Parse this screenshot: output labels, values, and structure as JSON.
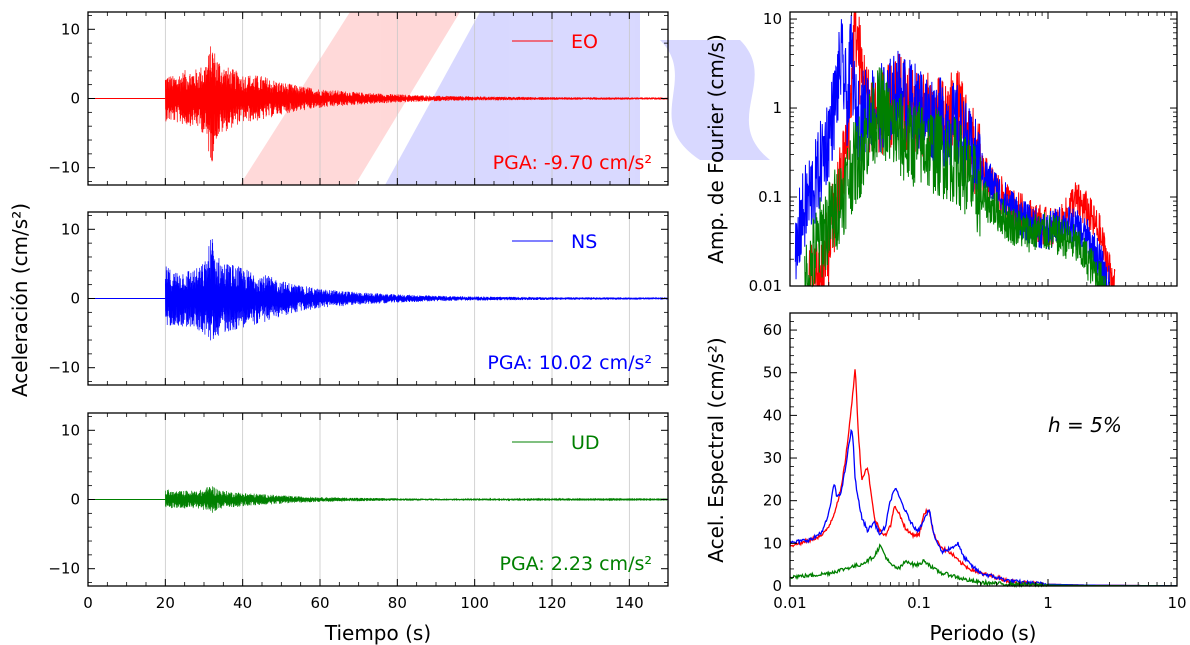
{
  "figure": {
    "left_ylabel": "Aceleración (cm/s²)",
    "left_xlabel": "Tiempo (s)",
    "right_xlabel": "Periodo (s)",
    "fourier_ylabel": "Amp. de Fourier (cm/s)",
    "spectral_ylabel": "Acel. Espectral (cm/s²)",
    "damping_annotation": "h = 5%",
    "colors": {
      "EO": "#ff0000",
      "NS": "#0000ff",
      "UD": "#008000",
      "grid": "#c8c8c8"
    }
  },
  "chart_data": [
    {
      "type": "line",
      "panel": "time-history-EO",
      "legend": "EO",
      "pga_label": "PGA: -9.70 cm/s²",
      "xlim": [
        0,
        150
      ],
      "ylim": [
        -12.5,
        12.5
      ],
      "x_ticks": [
        0,
        20,
        40,
        60,
        80,
        100,
        120,
        140
      ],
      "y_ticks": [
        -10,
        0,
        10
      ],
      "grid_x": true,
      "record_start": 20,
      "envelope": {
        "t": [
          20,
          22,
          25,
          28,
          30,
          31,
          32,
          33,
          35,
          38,
          40,
          45,
          50,
          55,
          60,
          70,
          80,
          90,
          100,
          120,
          150
        ],
        "max": [
          3.6,
          3.3,
          4.1,
          4.3,
          5.0,
          6.2,
          8.3,
          6.6,
          4.9,
          4.1,
          3.6,
          3.3,
          2.4,
          1.8,
          1.4,
          0.9,
          0.6,
          0.4,
          0.3,
          0.2,
          0.15
        ],
        "min": [
          -3.3,
          -3.4,
          -3.9,
          -4.1,
          -5.2,
          -7.6,
          -9.7,
          -6.1,
          -5.0,
          -4.0,
          -3.5,
          -3.2,
          -2.3,
          -1.8,
          -1.4,
          -0.9,
          -0.6,
          -0.4,
          -0.3,
          -0.2,
          -0.15
        ]
      }
    },
    {
      "type": "line",
      "panel": "time-history-NS",
      "legend": "NS",
      "pga_label": "PGA: 10.02 cm/s²",
      "xlim": [
        0,
        150
      ],
      "ylim": [
        -12.5,
        12.5
      ],
      "x_ticks": [
        0,
        20,
        40,
        60,
        80,
        100,
        120,
        140
      ],
      "y_ticks": [
        -10,
        0,
        10
      ],
      "grid_x": true,
      "record_start": 20,
      "envelope": {
        "t": [
          20,
          22,
          25,
          28,
          30,
          31,
          32,
          33,
          35,
          38,
          40,
          45,
          50,
          55,
          60,
          70,
          80,
          90,
          100,
          120,
          150
        ],
        "max": [
          4.8,
          4.0,
          4.2,
          4.4,
          5.2,
          7.0,
          10.0,
          6.5,
          5.4,
          4.9,
          4.4,
          3.6,
          2.6,
          1.9,
          1.4,
          0.9,
          0.6,
          0.4,
          0.3,
          0.2,
          0.15
        ],
        "min": [
          -4.2,
          -3.8,
          -4.2,
          -4.4,
          -5.2,
          -6.0,
          -6.4,
          -5.6,
          -5.0,
          -4.6,
          -4.2,
          -3.6,
          -2.6,
          -1.9,
          -1.4,
          -0.9,
          -0.6,
          -0.4,
          -0.3,
          -0.2,
          -0.15
        ]
      }
    },
    {
      "type": "line",
      "panel": "time-history-UD",
      "legend": "UD",
      "pga_label": "PGA: 2.23 cm/s²",
      "xlim": [
        0,
        150
      ],
      "ylim": [
        -12.5,
        12.5
      ],
      "x_ticks": [
        0,
        20,
        40,
        60,
        80,
        100,
        120,
        140
      ],
      "y_ticks": [
        -10,
        0,
        10
      ],
      "grid_x": true,
      "record_start": 20,
      "envelope": {
        "t": [
          20,
          22,
          25,
          28,
          30,
          31,
          32,
          33,
          35,
          38,
          40,
          45,
          50,
          55,
          60,
          70,
          80,
          90,
          100,
          120,
          150
        ],
        "max": [
          1.6,
          1.2,
          1.3,
          1.3,
          1.5,
          1.9,
          2.2,
          1.7,
          1.3,
          1.1,
          1.0,
          0.8,
          0.6,
          0.45,
          0.35,
          0.25,
          0.18,
          0.12,
          0.1,
          0.08,
          0.06
        ],
        "min": [
          -1.7,
          -1.2,
          -1.3,
          -1.3,
          -1.5,
          -1.8,
          -2.0,
          -1.6,
          -1.3,
          -1.1,
          -1.0,
          -0.8,
          -0.6,
          -0.45,
          -0.35,
          -0.25,
          -0.18,
          -0.12,
          -0.1,
          -0.08,
          -0.06
        ]
      }
    },
    {
      "type": "line",
      "panel": "fourier-spectrum",
      "xscale": "log",
      "yscale": "log",
      "xlim": [
        0.01,
        10
      ],
      "ylim": [
        0.01,
        12
      ],
      "y_tick_labels": [
        "0.01",
        "0.1",
        "1",
        "10"
      ],
      "series": [
        {
          "name": "EO",
          "x": [
            0.014,
            0.016,
            0.018,
            0.02,
            0.022,
            0.025,
            0.028,
            0.03,
            0.032,
            0.035,
            0.04,
            0.05,
            0.06,
            0.07,
            0.08,
            0.1,
            0.12,
            0.15,
            0.2,
            0.25,
            0.3,
            0.4,
            0.5,
            0.7,
            1.0,
            1.3,
            1.6,
            2.0,
            2.5,
            3.0,
            3.3
          ],
          "y": [
            0.01,
            0.011,
            0.015,
            0.03,
            0.06,
            0.15,
            0.5,
            2.0,
            10.0,
            3.0,
            1.0,
            0.9,
            1.0,
            1.3,
            1.0,
            0.9,
            0.8,
            0.7,
            0.9,
            0.4,
            0.2,
            0.12,
            0.08,
            0.06,
            0.045,
            0.05,
            0.095,
            0.07,
            0.04,
            0.015,
            0.01
          ]
        },
        {
          "name": "NS",
          "x": [
            0.011,
            0.012,
            0.014,
            0.016,
            0.018,
            0.02,
            0.022,
            0.025,
            0.028,
            0.03,
            0.032,
            0.035,
            0.04,
            0.05,
            0.06,
            0.07,
            0.08,
            0.1,
            0.12,
            0.15,
            0.2,
            0.25,
            0.3,
            0.4,
            0.5,
            0.7,
            1.0,
            1.3,
            1.6,
            2.0,
            2.5,
            2.8,
            3.0
          ],
          "y": [
            0.015,
            0.05,
            0.1,
            0.15,
            0.3,
            0.5,
            1.0,
            3.5,
            1.0,
            5.0,
            0.8,
            0.8,
            1.0,
            1.0,
            1.2,
            1.5,
            1.2,
            1.0,
            0.8,
            0.7,
            0.6,
            0.3,
            0.2,
            0.12,
            0.08,
            0.05,
            0.04,
            0.05,
            0.045,
            0.035,
            0.02,
            0.012,
            0.01
          ]
        },
        {
          "name": "UD",
          "x": [
            0.013,
            0.015,
            0.018,
            0.02,
            0.025,
            0.03,
            0.035,
            0.04,
            0.05,
            0.06,
            0.07,
            0.08,
            0.1,
            0.12,
            0.15,
            0.2,
            0.25,
            0.3,
            0.4,
            0.5,
            0.7,
            1.0,
            1.3,
            1.6,
            2.0,
            2.5,
            2.8
          ],
          "y": [
            0.01,
            0.02,
            0.04,
            0.05,
            0.1,
            0.2,
            0.3,
            0.5,
            1.0,
            0.6,
            0.5,
            0.4,
            0.4,
            0.35,
            0.3,
            0.25,
            0.15,
            0.1,
            0.07,
            0.05,
            0.04,
            0.04,
            0.035,
            0.03,
            0.02,
            0.012,
            0.01
          ]
        }
      ]
    },
    {
      "type": "line",
      "panel": "response-spectrum",
      "xscale": "log",
      "xlim": [
        0.01,
        10
      ],
      "ylim": [
        0,
        64
      ],
      "x_tick_labels": [
        "0.01",
        "0.1",
        "1",
        "10"
      ],
      "y_ticks": [
        0,
        10,
        20,
        30,
        40,
        50,
        60
      ],
      "series": [
        {
          "name": "EO",
          "x": [
            0.01,
            0.012,
            0.015,
            0.018,
            0.02,
            0.022,
            0.025,
            0.027,
            0.03,
            0.032,
            0.034,
            0.036,
            0.04,
            0.045,
            0.05,
            0.055,
            0.06,
            0.065,
            0.07,
            0.08,
            0.09,
            0.1,
            0.11,
            0.12,
            0.13,
            0.15,
            0.18,
            0.2,
            0.22,
            0.25,
            0.3,
            0.4,
            0.5,
            0.7,
            1.0,
            2.0,
            5.0,
            10.0
          ],
          "y": [
            9.5,
            10,
            11,
            12,
            14,
            17,
            23,
            30,
            42,
            51.5,
            35,
            25,
            28,
            16,
            13,
            12,
            14,
            19,
            17,
            13,
            12,
            12,
            17,
            18,
            12,
            9,
            7.5,
            6,
            5,
            4,
            3,
            2,
            1.2,
            0.7,
            0.4,
            0.2,
            0.1,
            0.05
          ]
        },
        {
          "name": "NS",
          "x": [
            0.01,
            0.012,
            0.015,
            0.018,
            0.02,
            0.022,
            0.023,
            0.025,
            0.027,
            0.03,
            0.031,
            0.032,
            0.034,
            0.036,
            0.04,
            0.045,
            0.05,
            0.055,
            0.06,
            0.065,
            0.07,
            0.08,
            0.09,
            0.1,
            0.11,
            0.12,
            0.13,
            0.15,
            0.18,
            0.2,
            0.22,
            0.25,
            0.3,
            0.4,
            0.5,
            0.7,
            1.0,
            2.0,
            5.0,
            10.0
          ],
          "y": [
            10,
            10.5,
            11,
            13,
            17,
            24,
            21,
            22,
            28,
            37,
            33,
            25,
            20,
            16,
            13,
            15,
            12,
            14,
            20,
            23,
            21,
            17,
            14,
            13,
            16,
            18,
            12,
            8,
            9,
            10,
            7,
            5,
            3,
            2,
            1.2,
            0.7,
            0.4,
            0.2,
            0.1,
            0.05
          ]
        },
        {
          "name": "UD",
          "x": [
            0.01,
            0.012,
            0.015,
            0.02,
            0.025,
            0.03,
            0.035,
            0.04,
            0.045,
            0.05,
            0.055,
            0.06,
            0.07,
            0.08,
            0.09,
            0.1,
            0.11,
            0.12,
            0.13,
            0.15,
            0.18,
            0.2,
            0.25,
            0.3,
            0.5,
            1.0,
            2.0,
            5.0,
            10.0
          ],
          "y": [
            2.2,
            2.3,
            2.5,
            3.0,
            3.8,
            4.5,
            5,
            6,
            7,
            9.5,
            7,
            5,
            4,
            6,
            5,
            5,
            6,
            5,
            4,
            3,
            2.5,
            2,
            1.2,
            0.8,
            0.4,
            0.2,
            0.1,
            0.05,
            0.03
          ]
        }
      ]
    }
  ]
}
